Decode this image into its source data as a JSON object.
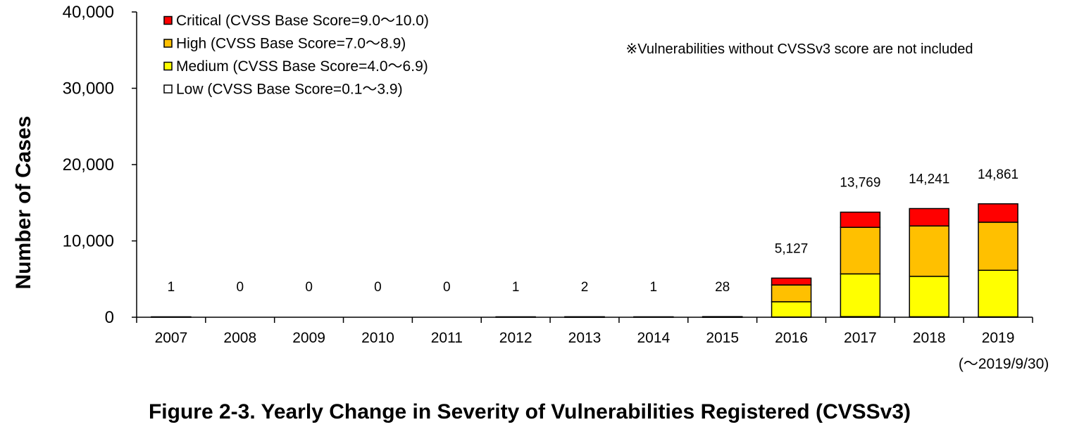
{
  "chart_data": {
    "type": "bar",
    "stacked": true,
    "title": "Figure 2-3. Yearly Change in Severity of Vulnerabilities Registered (CVSSv3)",
    "ylabel": "Number of Cases",
    "xlabel": "",
    "ylim": [
      0,
      40000
    ],
    "yticks": [
      0,
      10000,
      20000,
      30000,
      40000
    ],
    "ytick_labels": [
      "0",
      "10,000",
      "20,000",
      "30,000",
      "40,000"
    ],
    "grid": false,
    "legend_position": "top-left",
    "categories": [
      "2007",
      "2008",
      "2009",
      "2010",
      "2011",
      "2012",
      "2013",
      "2014",
      "2015",
      "2016",
      "2017",
      "2018",
      "2019"
    ],
    "category_sublabels": {
      "2019": "(～2019/9/30)"
    },
    "totals": [
      1,
      0,
      0,
      0,
      0,
      1,
      2,
      1,
      28,
      5127,
      13769,
      14241,
      14861
    ],
    "total_labels": [
      "1",
      "0",
      "0",
      "0",
      "0",
      "1",
      "2",
      "1",
      "28",
      "5,127",
      "13,769",
      "14,241",
      "14,861"
    ],
    "series": [
      {
        "name": "Low (CVSS Base Score=0.1～3.9)",
        "color": "#ffffff",
        "values": [
          0,
          0,
          0,
          0,
          0,
          0,
          0,
          0,
          1,
          30,
          80,
          60,
          50
        ]
      },
      {
        "name": "Medium (CVSS Base Score=4.0～6.9)",
        "color": "#ffff00",
        "values": [
          1,
          0,
          0,
          0,
          0,
          0,
          1,
          1,
          12,
          2000,
          5600,
          5300,
          6100
        ]
      },
      {
        "name": "High (CVSS Base Score=7.0～8.9)",
        "color": "#ffc000",
        "values": [
          0,
          0,
          0,
          0,
          0,
          1,
          1,
          0,
          12,
          2200,
          6100,
          6600,
          6300
        ]
      },
      {
        "name": "Critical (CVSS Base Score=9.0～10.0)",
        "color": "#ff0000",
        "values": [
          0,
          0,
          0,
          0,
          0,
          0,
          0,
          0,
          3,
          897,
          1989,
          2281,
          2411
        ]
      }
    ],
    "legend_order": [
      3,
      2,
      1,
      0
    ],
    "annotation": "※Vulnerabilities without CVSSv3 score are not included"
  }
}
